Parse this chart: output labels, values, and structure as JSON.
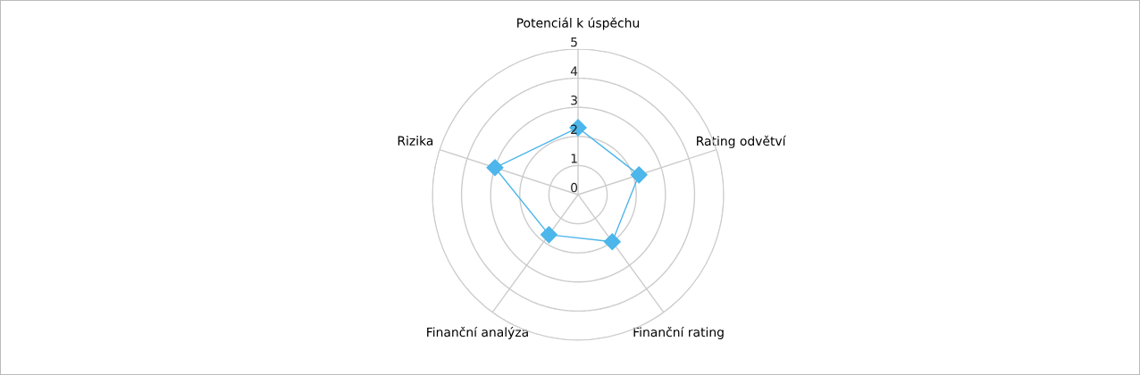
{
  "chart_data": {
    "type": "radar",
    "categories": [
      "Potenciál k úspěchu",
      "Rating odvětví",
      "Finanční rating",
      "Finanční analýza",
      "Rizika"
    ],
    "series": [
      {
        "color": "#4db6ea",
        "values": [
          2.3,
          2.2,
          2.0,
          1.7,
          3.0
        ]
      }
    ],
    "ylim": [
      0,
      5
    ],
    "yticks": [
      0,
      1,
      2,
      3,
      4,
      5
    ],
    "grid": true,
    "marker": "diamond"
  }
}
